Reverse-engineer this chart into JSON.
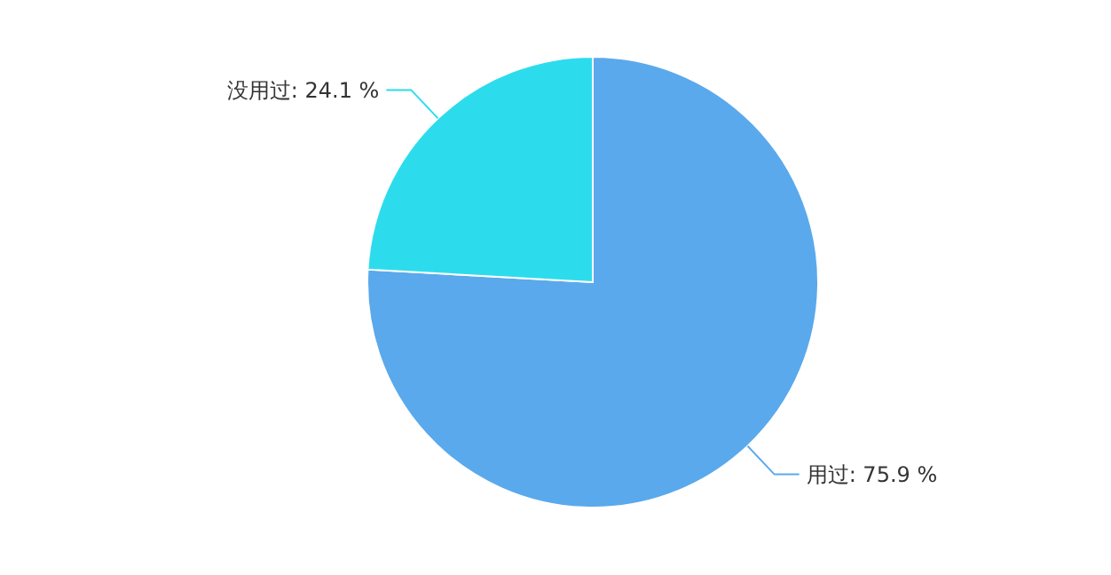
{
  "chart_data": {
    "type": "pie",
    "categories": [
      "用过",
      "没用过"
    ],
    "values": [
      75.9,
      24.1
    ],
    "value_labels": [
      "75.9 %",
      "24.1 %"
    ],
    "colors": [
      "#5aa9ec",
      "#2ddcec"
    ]
  }
}
